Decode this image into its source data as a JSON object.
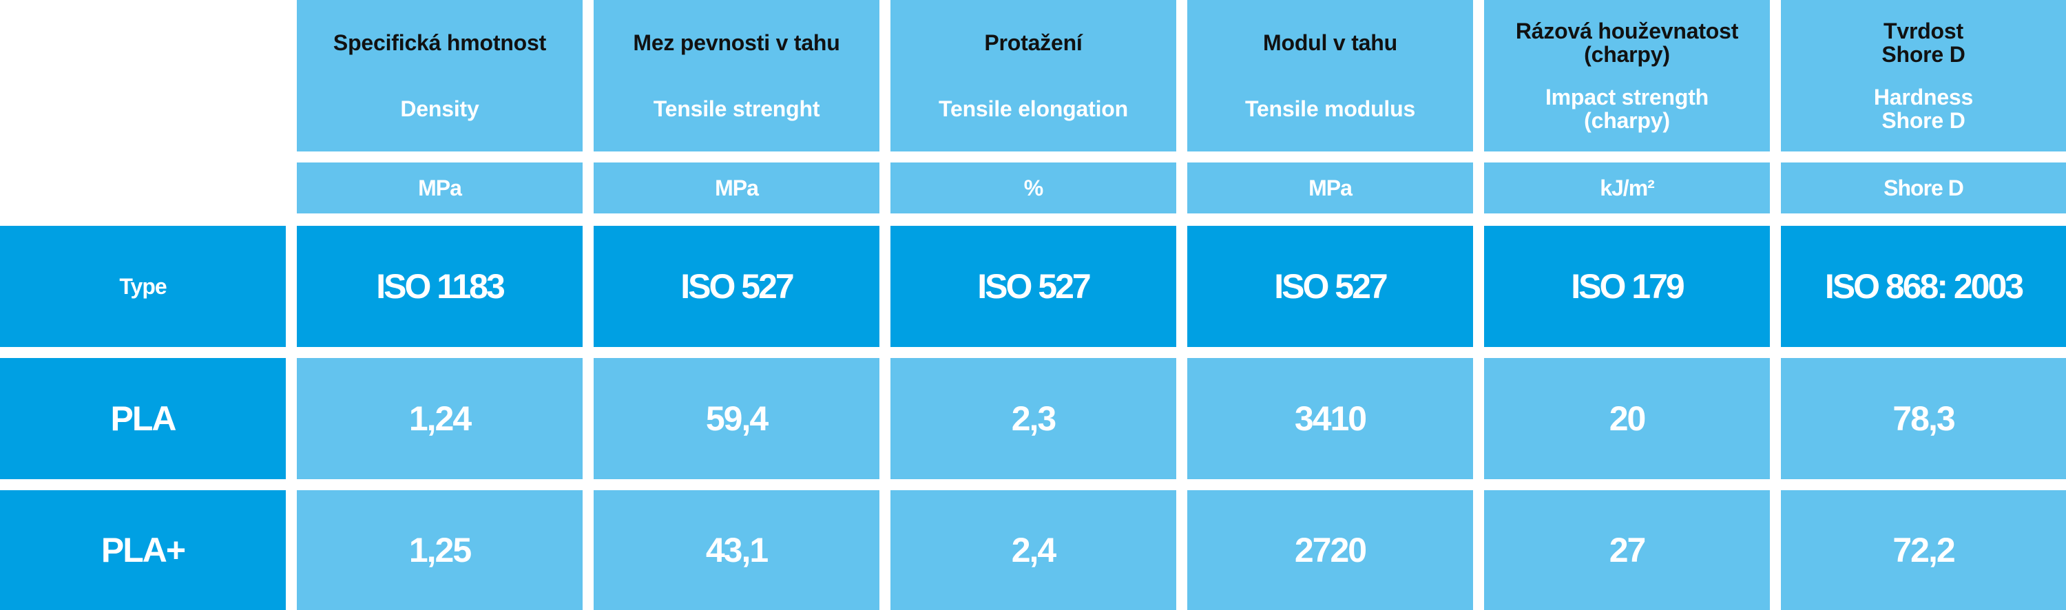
{
  "columns": [
    {
      "cz": "Specifická hmotnost",
      "en": "Density",
      "unit": "MPa",
      "standard": "ISO 1183"
    },
    {
      "cz": "Mez pevnosti v tahu",
      "en": "Tensile strenght",
      "unit": "MPa",
      "standard": "ISO 527"
    },
    {
      "cz": "Protažení",
      "en": "Tensile elongation",
      "unit": "%",
      "standard": "ISO 527"
    },
    {
      "cz": "Modul v tahu",
      "en": "Tensile modulus",
      "unit": "MPa",
      "standard": "ISO 527"
    },
    {
      "cz": "Rázová houževnatost (charpy)",
      "cz_l1": "Rázová houževnatost",
      "cz_l2": "(charpy)",
      "en": "Impact strength (charpy)",
      "en_l1": "Impact strength",
      "en_l2": "(charpy)",
      "unit": "kJ/m²",
      "standard": "ISO 179"
    },
    {
      "cz": "Tvrdost Shore D",
      "cz_l1": "Tvrdost",
      "cz_l2": "Shore D",
      "en": "Hardness Shore D",
      "en_l1": "Hardness",
      "en_l2": "Shore D",
      "unit": "Shore D",
      "standard": "ISO 868: 2003"
    }
  ],
  "type_label": "Type",
  "rows": [
    {
      "material": "PLA",
      "values": [
        "1,24",
        "59,4",
        "2,3",
        "3410",
        "20",
        "78,3"
      ]
    },
    {
      "material": "PLA+",
      "values": [
        "1,25",
        "43,1",
        "2,4",
        "2720",
        "27",
        "72,2"
      ]
    }
  ],
  "colors": {
    "light": "#63c3ee",
    "dark": "#00a0e3",
    "header_text": "#111111",
    "text": "#ffffff"
  }
}
